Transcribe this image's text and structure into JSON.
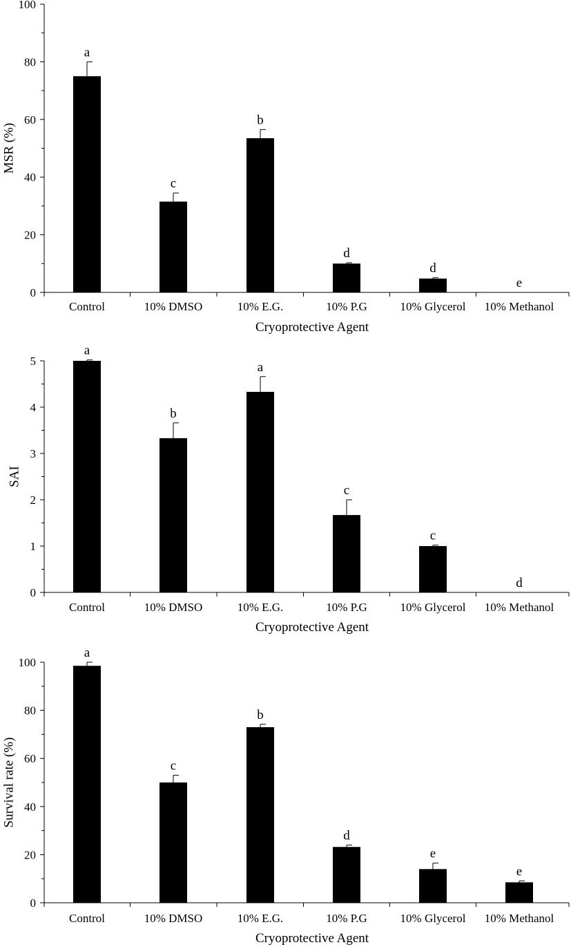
{
  "chart_data": [
    {
      "type": "bar",
      "categories": [
        "Control",
        "10% DMSO",
        "10% E.G.",
        "10% P.G",
        "10% Glycerol",
        "10% Methanol"
      ],
      "values": [
        75,
        31.5,
        53.5,
        10,
        4.8,
        0
      ],
      "errors": [
        5,
        3,
        3,
        0.3,
        0.3,
        0
      ],
      "significance": [
        "a",
        "c",
        "b",
        "d",
        "d",
        "e"
      ],
      "xlabel": "Cryoprotective Agent",
      "ylabel": "MSR (%)",
      "ylim": [
        0,
        100
      ],
      "yticks": [
        "0",
        "20",
        "40",
        "60",
        "80",
        "100"
      ],
      "grid": false,
      "color": "#000000"
    },
    {
      "type": "bar",
      "categories": [
        "Control",
        "10% DMSO",
        "10% E.G.",
        "10% P.G",
        "10% Glycerol",
        "10% Methanol"
      ],
      "values": [
        5,
        3.33,
        4.33,
        1.67,
        1,
        0
      ],
      "errors": [
        0.02,
        0.33,
        0.33,
        0.33,
        0.02,
        0
      ],
      "significance": [
        "a",
        "b",
        "a",
        "c",
        "c",
        "d"
      ],
      "xlabel": "Cryoprotective Agent",
      "ylabel": "SAI",
      "ylim": [
        0,
        5
      ],
      "yticks": [
        "0",
        "1",
        "2",
        "3",
        "4",
        "5"
      ],
      "grid": false,
      "color": "#000000"
    },
    {
      "type": "bar",
      "categories": [
        "Control",
        "10% DMSO",
        "10% E.G.",
        "10% P.G",
        "10% Glycerol",
        "10% Methanol"
      ],
      "values": [
        98.5,
        50,
        73,
        23.2,
        14,
        8.5
      ],
      "errors": [
        1.5,
        3,
        1.2,
        0.8,
        2.5,
        0.6
      ],
      "significance": [
        "a",
        "c",
        "b",
        "d",
        "e",
        "e"
      ],
      "xlabel": "Cryoprotective Agent",
      "ylabel": "Survival rate (%)",
      "ylim": [
        0,
        100
      ],
      "yticks": [
        "0",
        "20",
        "40",
        "60",
        "80",
        "100"
      ],
      "grid": false,
      "color": "#000000"
    }
  ]
}
